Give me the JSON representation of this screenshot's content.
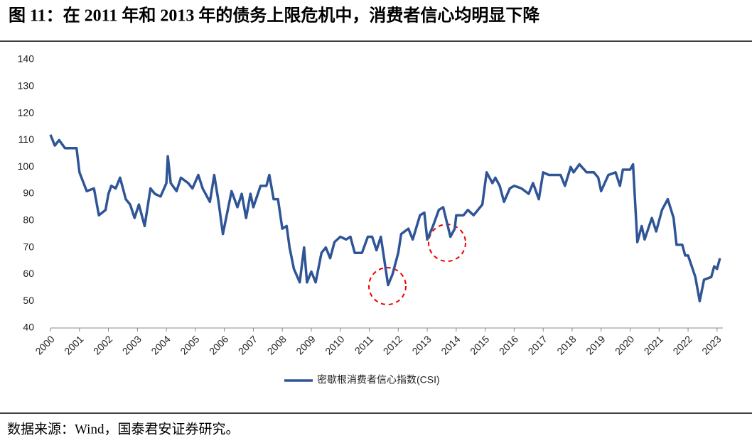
{
  "chart_data": {
    "type": "line",
    "title": "图 11：在 2011 年和 2013 年的债务上限危机中，消费者信心均明显下降",
    "source": "数据来源：Wind，国泰君安证券研究。",
    "x": [
      2000.0,
      2000.15,
      2000.3,
      2000.5,
      2000.75,
      2000.9,
      2001.0,
      2001.25,
      2001.5,
      2001.67,
      2001.9,
      2002.0,
      2002.1,
      2002.25,
      2002.4,
      2002.6,
      2002.75,
      2002.9,
      2003.05,
      2003.25,
      2003.45,
      2003.6,
      2003.8,
      2004.0,
      2004.05,
      2004.15,
      2004.35,
      2004.5,
      2004.75,
      2004.9,
      2005.1,
      2005.25,
      2005.5,
      2005.65,
      2005.8,
      2005.95,
      2006.25,
      2006.45,
      2006.6,
      2006.75,
      2006.9,
      2007.0,
      2007.25,
      2007.45,
      2007.55,
      2007.7,
      2007.85,
      2008.0,
      2008.15,
      2008.25,
      2008.4,
      2008.6,
      2008.75,
      2008.85,
      2009.0,
      2009.15,
      2009.35,
      2009.5,
      2009.65,
      2009.8,
      2010.0,
      2010.2,
      2010.35,
      2010.5,
      2010.75,
      2010.95,
      2011.1,
      2011.25,
      2011.4,
      2011.65,
      2011.8,
      2012.0,
      2012.1,
      2012.35,
      2012.5,
      2012.75,
      2012.9,
      2013.0,
      2013.2,
      2013.4,
      2013.55,
      2013.8,
      2013.95,
      2014.0,
      2014.25,
      2014.4,
      2014.6,
      2014.9,
      2015.0,
      2015.05,
      2015.25,
      2015.35,
      2015.5,
      2015.65,
      2015.85,
      2016.0,
      2016.25,
      2016.5,
      2016.65,
      2016.85,
      2017.0,
      2017.2,
      2017.4,
      2017.6,
      2017.75,
      2017.95,
      2018.05,
      2018.25,
      2018.5,
      2018.75,
      2018.9,
      2019.0,
      2019.25,
      2019.5,
      2019.65,
      2019.75,
      2019.85,
      2020.0,
      2020.1,
      2020.25,
      2020.4,
      2020.5,
      2020.75,
      2020.9,
      2021.0,
      2021.1,
      2021.3,
      2021.5,
      2021.6,
      2021.8,
      2021.9,
      2022.0,
      2022.25,
      2022.4,
      2022.55,
      2022.8,
      2022.9,
      2023.0,
      2023.1
    ],
    "series": [
      {
        "name": "密歇根消费者信心指数(CSI)",
        "color": "#2f5597",
        "values": [
          112,
          108,
          110,
          107,
          107,
          107,
          98,
          91,
          92,
          82,
          84,
          90,
          93,
          92,
          96,
          88,
          86,
          81,
          86,
          78,
          92,
          90,
          89,
          94,
          104,
          94,
          91,
          96,
          94,
          92,
          97,
          92,
          87,
          97,
          87,
          75,
          91,
          85,
          90,
          81,
          90,
          85,
          93,
          93,
          97,
          88,
          88,
          77,
          78,
          70,
          62,
          57,
          70,
          57,
          61,
          57,
          68,
          70,
          66,
          72,
          74,
          73,
          74,
          68,
          68,
          74,
          74,
          69,
          74,
          56,
          60,
          68,
          75,
          77,
          73,
          82,
          83,
          73,
          78,
          84,
          85,
          74,
          77,
          82,
          82,
          84,
          82,
          86,
          94,
          98,
          94,
          96,
          93,
          87,
          92,
          93,
          92,
          90,
          94,
          88,
          98,
          97,
          97,
          97,
          93,
          100,
          98,
          101,
          98,
          98,
          96,
          91,
          97,
          98,
          93,
          99,
          99,
          99,
          101,
          72,
          78,
          73,
          81,
          76,
          80,
          84,
          88,
          81,
          71,
          71,
          67,
          67,
          59,
          50,
          58,
          59,
          63,
          62,
          66
        ]
      }
    ],
    "xlim": [
      2000,
      2023.2
    ],
    "xticks": [
      2000,
      2001,
      2002,
      2003,
      2004,
      2005,
      2006,
      2007,
      2008,
      2009,
      2010,
      2011,
      2012,
      2013,
      2014,
      2015,
      2016,
      2017,
      2018,
      2019,
      2020,
      2021,
      2022,
      2023
    ],
    "ylim": [
      40,
      140
    ],
    "yticks": [
      40,
      50,
      60,
      70,
      80,
      90,
      100,
      110,
      120,
      130,
      140
    ],
    "grid": false
  }
}
